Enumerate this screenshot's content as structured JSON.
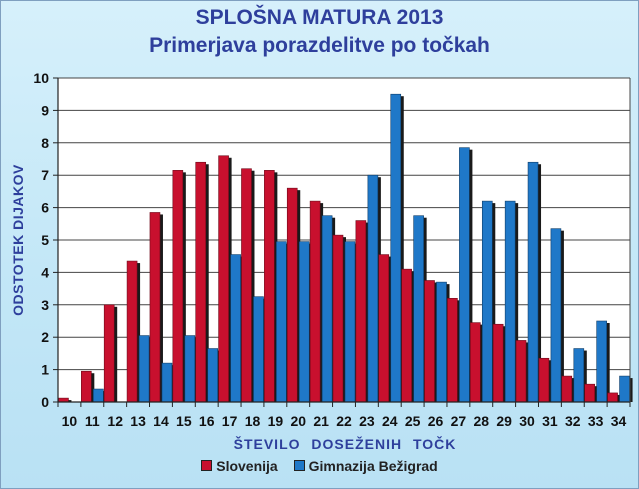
{
  "chart_data": {
    "type": "bar",
    "title": "SPLOŠNA MATURA  2013",
    "subtitle": "Primerjava porazdelitve po točkah",
    "xlabel": "ŠTEVILO  DOSEŽENIH  TOČK",
    "ylabel": "ODSTOTEK  DIJAKOV",
    "ylim": [
      0,
      10
    ],
    "yticks": [
      "0",
      "1",
      "2",
      "3",
      "4",
      "5",
      "6",
      "7",
      "8",
      "9",
      "10"
    ],
    "grid": true,
    "legend": "bottom",
    "categories": [
      "10",
      "11",
      "12",
      "13",
      "14",
      "15",
      "16",
      "17",
      "18",
      "19",
      "20",
      "21",
      "22",
      "23",
      "24",
      "25",
      "26",
      "27",
      "28",
      "29",
      "30",
      "31",
      "32",
      "33",
      "34"
    ],
    "series": [
      {
        "name": "Slovenija",
        "color": "#c8102e",
        "values": [
          0.12,
          0.95,
          3.0,
          4.35,
          5.85,
          7.15,
          7.4,
          7.6,
          7.2,
          7.15,
          6.6,
          6.2,
          5.15,
          5.6,
          4.55,
          4.1,
          3.75,
          3.2,
          2.45,
          2.4,
          1.9,
          1.35,
          0.8,
          0.55,
          0.28
        ]
      },
      {
        "name": "Gimnazija Bežigrad",
        "color": "#1f78c8",
        "values": [
          0,
          0.4,
          0,
          2.05,
          1.2,
          2.05,
          1.65,
          4.55,
          3.25,
          4.95,
          4.95,
          5.75,
          4.95,
          7.0,
          9.5,
          5.75,
          3.7,
          7.85,
          6.2,
          6.2,
          7.4,
          5.35,
          1.65,
          2.5,
          0.8
        ]
      }
    ]
  }
}
